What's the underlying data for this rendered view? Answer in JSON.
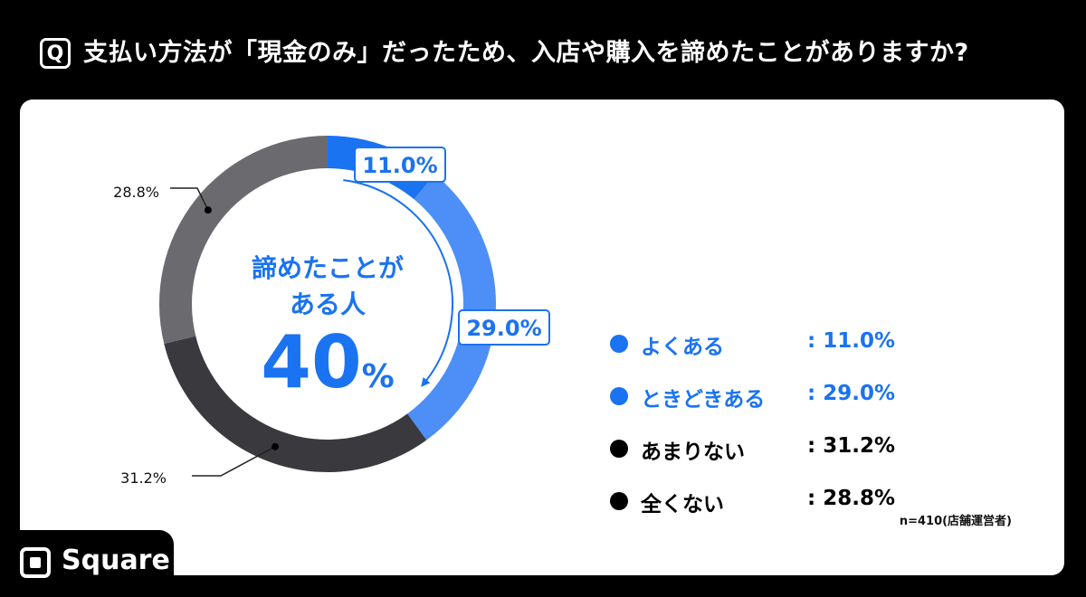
{
  "header": {
    "badge": "Q",
    "question": "支払い方法が「現金のみ」だったため、入店や購入を諦めたことがありますか?"
  },
  "center": {
    "line1": "諦めたことが",
    "line2": "ある人",
    "value": "40",
    "unit": "%"
  },
  "note": "n=410(店舗運営者)",
  "logo": {
    "text": "Square"
  },
  "colors": {
    "often": "#1a73f0",
    "sometimes": "#4d8ff7",
    "rarely": "#3a3a3e",
    "never": "#6b6b6f",
    "accent": "#1a73f0"
  },
  "chart_data": {
    "type": "pie",
    "donut": true,
    "categories": [
      "よくある",
      "ときどきある",
      "あまりない",
      "全くない"
    ],
    "values": [
      11.0,
      29.0,
      31.2,
      28.8
    ],
    "data_labels": [
      "11.0%",
      "29.0%",
      "31.2%",
      "28.8%"
    ],
    "legend_values": [
      ": 11.0%",
      ": 29.0%",
      ": 31.2%",
      ": 28.8%"
    ],
    "start_angle": "top",
    "direction": "clockwise"
  }
}
